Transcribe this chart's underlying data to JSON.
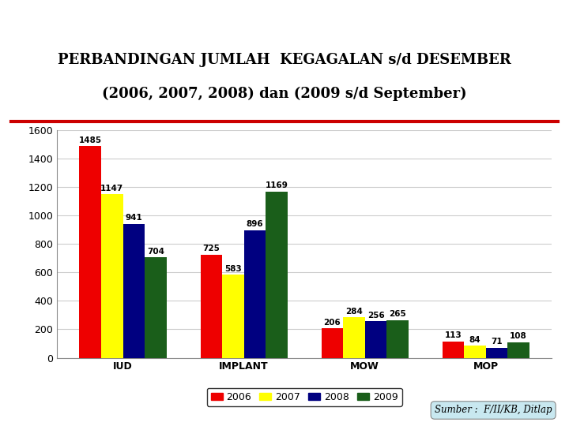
{
  "title_line1": "PERBANDINGAN JUMLAH  KEGAGALAN s/d DESEMBER",
  "title_line2": "(2006, 2007, 2008) dan (2009 s/d September)",
  "categories": [
    "IUD",
    "IMPLANT",
    "MOW",
    "MOP"
  ],
  "series": {
    "2006": [
      1485,
      725,
      206,
      113
    ],
    "2007": [
      1147,
      583,
      284,
      84
    ],
    "2008": [
      941,
      896,
      256,
      71
    ],
    "2009": [
      704,
      1169,
      265,
      108
    ]
  },
  "colors": {
    "2006": "#ee0000",
    "2007": "#ffff00",
    "2008": "#000080",
    "2009": "#1a5e1a"
  },
  "ylim": [
    0,
    1600
  ],
  "yticks": [
    0,
    200,
    400,
    600,
    800,
    1000,
    1200,
    1400,
    1600
  ],
  "source_text": "Sumber :  F/II/KB, Ditlap",
  "bar_width": 0.18,
  "title_fontsize": 13,
  "label_fontsize": 7.5,
  "tick_fontsize": 9,
  "legend_fontsize": 9,
  "background_color": "#ffffff",
  "grid_color": "#cccccc",
  "header_color_top": "#5bbfcf",
  "header_color_mid": "#aadde8",
  "red_line_color": "#cc0000",
  "source_box_color": "#c8e8f0"
}
